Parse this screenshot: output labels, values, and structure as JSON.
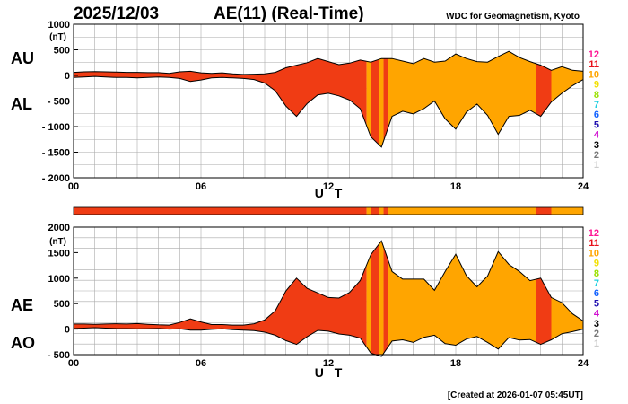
{
  "header": {
    "date": "2025/12/03",
    "title": "AE(11) (Real-Time)",
    "organization": "WDC for Geomagnetism, Kyoto",
    "created": "[Created at 2026-01-07 05:45UT]"
  },
  "colors": {
    "red": "#f03c14",
    "orange": "#ffa500",
    "grid": "#aaaaaa",
    "strip_background": "#dddddd"
  },
  "kp_scale": [
    {
      "label": "12",
      "color": "#ff1493"
    },
    {
      "label": "11",
      "color": "#e8101a"
    },
    {
      "label": "10",
      "color": "#ffa500"
    },
    {
      "label": "9",
      "color": "#f2e000"
    },
    {
      "label": "8",
      "color": "#99e000"
    },
    {
      "label": "7",
      "color": "#20d0e0"
    },
    {
      "label": "6",
      "color": "#1060ff"
    },
    {
      "label": "5",
      "color": "#2010b0"
    },
    {
      "label": "4",
      "color": "#d010d0"
    },
    {
      "label": "3",
      "color": "#000000"
    },
    {
      "label": "2",
      "color": "#777777"
    },
    {
      "label": "1",
      "color": "#cccccc"
    }
  ],
  "chart_data": [
    {
      "type": "area",
      "panel": "AU-AL",
      "side_labels": [
        "AU",
        "AL"
      ],
      "unit_label": "(nT)",
      "xlabel": "U T",
      "xlim": [
        0,
        24
      ],
      "xticks": [
        0,
        6,
        12,
        18,
        24
      ],
      "xtick_labels": [
        "00",
        "06",
        "12",
        "18",
        "24"
      ],
      "ylim": [
        -2000,
        1000
      ],
      "yticks": [
        1000,
        500,
        0,
        -500,
        -1000,
        -1500,
        -2000
      ],
      "ytick_labels": [
        "1000",
        "500",
        "0",
        "- 500",
        "- 1000",
        "- 1500",
        "- 2000"
      ],
      "grid": true,
      "x": [
        0,
        0.5,
        1,
        1.5,
        2,
        2.5,
        3,
        3.5,
        4,
        4.5,
        5,
        5.5,
        6,
        6.5,
        7,
        7.5,
        8,
        8.5,
        9,
        9.5,
        10,
        10.5,
        11,
        11.5,
        12,
        12.5,
        13,
        13.5,
        14,
        14.5,
        15,
        15.5,
        16,
        16.5,
        17,
        17.5,
        18,
        18.5,
        19,
        19.5,
        20,
        20.5,
        21,
        21.5,
        22,
        22.5,
        23,
        23.5,
        24
      ],
      "series": [
        {
          "name": "AU",
          "values": [
            60,
            70,
            75,
            70,
            65,
            60,
            60,
            55,
            55,
            40,
            70,
            80,
            50,
            40,
            50,
            30,
            20,
            25,
            30,
            60,
            150,
            200,
            250,
            330,
            270,
            210,
            240,
            300,
            260,
            330,
            330,
            280,
            230,
            330,
            260,
            280,
            420,
            330,
            270,
            260,
            370,
            470,
            350,
            270,
            200,
            100,
            170,
            100,
            80
          ]
        },
        {
          "name": "AL",
          "values": [
            -40,
            -30,
            -20,
            -30,
            -40,
            -40,
            -50,
            -40,
            -30,
            -40,
            -60,
            -120,
            -90,
            -50,
            -40,
            -50,
            -60,
            -80,
            -150,
            -300,
            -600,
            -800,
            -550,
            -380,
            -350,
            -400,
            -480,
            -650,
            -1200,
            -1400,
            -800,
            -700,
            -750,
            -650,
            -500,
            -850,
            -1050,
            -720,
            -560,
            -780,
            -1150,
            -800,
            -780,
            -680,
            -800,
            -520,
            -350,
            -200,
            -80
          ]
        }
      ],
      "activity_bands": [
        {
          "from": 0,
          "to": 13.8,
          "level": "11"
        },
        {
          "from": 13.8,
          "to": 14.0,
          "level": "10"
        },
        {
          "from": 14.0,
          "to": 14.4,
          "level": "11"
        },
        {
          "from": 14.4,
          "to": 14.6,
          "level": "10"
        },
        {
          "from": 14.6,
          "to": 14.8,
          "level": "11"
        },
        {
          "from": 14.8,
          "to": 21.8,
          "level": "10"
        },
        {
          "from": 21.8,
          "to": 22.5,
          "level": "11"
        },
        {
          "from": 22.5,
          "to": 24,
          "level": "10"
        }
      ]
    },
    {
      "type": "area",
      "panel": "AE-AO",
      "side_labels": [
        "AE",
        "AO"
      ],
      "unit_label": "(nT)",
      "xlabel": "U T",
      "xlim": [
        0,
        24
      ],
      "xticks": [
        0,
        6,
        12,
        18,
        24
      ],
      "xtick_labels": [
        "00",
        "06",
        "12",
        "18",
        "24"
      ],
      "ylim": [
        -500,
        2000
      ],
      "yticks": [
        2000,
        1500,
        1000,
        500,
        0,
        -500
      ],
      "ytick_labels": [
        "2000",
        "1500",
        "1000",
        "500",
        "0",
        "- 500"
      ],
      "grid": true,
      "x": [
        0,
        0.5,
        1,
        1.5,
        2,
        2.5,
        3,
        3.5,
        4,
        4.5,
        5,
        5.5,
        6,
        6.5,
        7,
        7.5,
        8,
        8.5,
        9,
        9.5,
        10,
        10.5,
        11,
        11.5,
        12,
        12.5,
        13,
        13.5,
        14,
        14.5,
        15,
        15.5,
        16,
        16.5,
        17,
        17.5,
        18,
        18.5,
        19,
        19.5,
        20,
        20.5,
        21,
        21.5,
        22,
        22.5,
        23,
        23.5,
        24
      ],
      "series": [
        {
          "name": "AE",
          "values": [
            100,
            100,
            95,
            100,
            105,
            100,
            110,
            95,
            85,
            80,
            130,
            200,
            140,
            90,
            90,
            80,
            80,
            105,
            180,
            360,
            750,
            1000,
            800,
            710,
            620,
            610,
            720,
            950,
            1460,
            1730,
            1130,
            980,
            980,
            980,
            760,
            1130,
            1470,
            1050,
            830,
            1040,
            1520,
            1270,
            1130,
            950,
            1000,
            620,
            520,
            300,
            160
          ]
        },
        {
          "name": "AO",
          "values": [
            10,
            20,
            28,
            20,
            13,
            10,
            5,
            8,
            13,
            0,
            5,
            -20,
            -20,
            -5,
            5,
            -10,
            -20,
            -28,
            -60,
            -120,
            -225,
            -300,
            -150,
            -25,
            -40,
            -95,
            -120,
            -175,
            -470,
            -535,
            -235,
            -210,
            -260,
            -160,
            -120,
            -285,
            -315,
            -195,
            -145,
            -260,
            -390,
            -165,
            -215,
            -205,
            -300,
            -210,
            -90,
            -50,
            0
          ]
        }
      ],
      "activity_bands": [
        {
          "from": 0,
          "to": 13.8,
          "level": "11"
        },
        {
          "from": 13.8,
          "to": 14.0,
          "level": "10"
        },
        {
          "from": 14.0,
          "to": 14.4,
          "level": "11"
        },
        {
          "from": 14.4,
          "to": 14.6,
          "level": "10"
        },
        {
          "from": 14.6,
          "to": 14.8,
          "level": "11"
        },
        {
          "from": 14.8,
          "to": 21.8,
          "level": "10"
        },
        {
          "from": 21.8,
          "to": 22.5,
          "level": "11"
        },
        {
          "from": 22.5,
          "to": 24,
          "level": "10"
        }
      ]
    }
  ]
}
